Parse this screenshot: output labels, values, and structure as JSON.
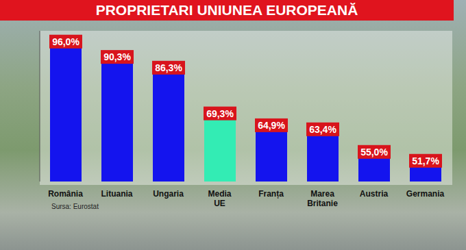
{
  "chart_data": {
    "type": "bar",
    "title": "PROPRIETARI UNIUNEA EUROPEANĂ",
    "categories": [
      "România",
      "Lituania",
      "Ungaria",
      "Media UE",
      "Franța",
      "Marea Britanie",
      "Austria",
      "Germania"
    ],
    "values": [
      96.0,
      90.3,
      86.3,
      69.3,
      64.9,
      63.4,
      55.0,
      51.7
    ],
    "value_labels": [
      "96,0%",
      "90,3%",
      "86,3%",
      "69,3%",
      "64,9%",
      "63,4%",
      "55,0%",
      "51,7%"
    ],
    "colors": [
      "#1414ee",
      "#1414ee",
      "#1414ee",
      "#33ecb4",
      "#1414ee",
      "#1414ee",
      "#1414ee",
      "#1414ee"
    ],
    "ylim": [
      44,
      100
    ],
    "tick_labels": "x",
    "data_labels": true,
    "source": "Sursa: Eurostat"
  }
}
